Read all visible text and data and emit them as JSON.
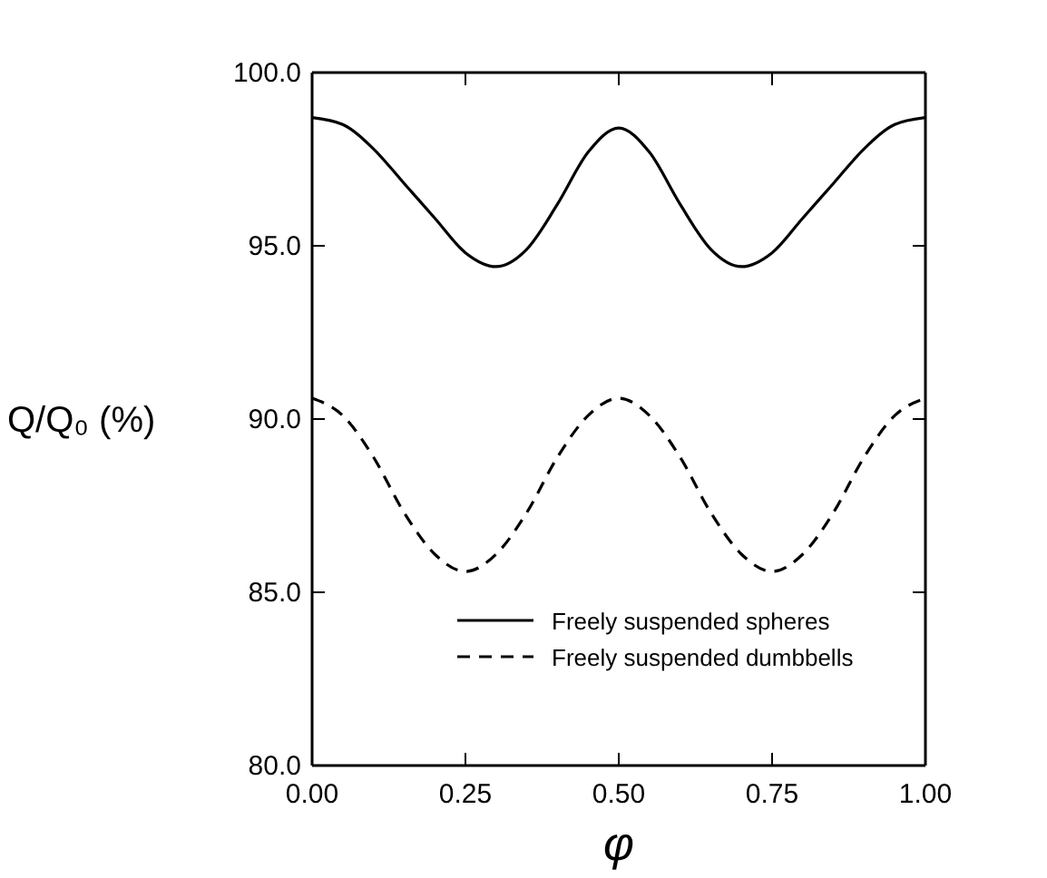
{
  "chart_data": {
    "type": "line",
    "xlabel": "φ",
    "ylabel": "Q/Q₀ (%)",
    "x": [
      0,
      0.05,
      0.1,
      0.15,
      0.2,
      0.25,
      0.3,
      0.35,
      0.4,
      0.45,
      0.5,
      0.55,
      0.6,
      0.65,
      0.7,
      0.75,
      0.8,
      0.85,
      0.9,
      0.95,
      1
    ],
    "series": [
      {
        "name": "Freely suspended spheres",
        "color": "#000000",
        "line_style": "solid",
        "values": [
          98.7,
          98.5,
          97.8,
          96.8,
          95.8,
          94.8,
          94.4,
          94.9,
          96.2,
          97.7,
          98.4,
          97.7,
          96.2,
          94.9,
          94.4,
          94.8,
          95.8,
          96.8,
          97.8,
          98.5,
          98.7
        ]
      },
      {
        "name": "Freely suspended dumbbells",
        "color": "#000000",
        "line_style": "dashed",
        "values": [
          90.6,
          90.1,
          88.9,
          87.3,
          86.1,
          85.6,
          86.1,
          87.3,
          88.9,
          90.1,
          90.6,
          90.1,
          88.9,
          87.3,
          86.1,
          85.6,
          86.1,
          87.3,
          88.9,
          90.1,
          90.6
        ]
      }
    ],
    "xlim": [
      0,
      1
    ],
    "xticks": [
      {
        "value": 0,
        "label": "0.00"
      },
      {
        "value": 0.25,
        "label": "0.25"
      },
      {
        "value": 0.5,
        "label": "0.50"
      },
      {
        "value": 0.75,
        "label": "0.75"
      },
      {
        "value": 1,
        "label": "1.00"
      }
    ],
    "ylim": [
      80,
      100
    ],
    "yticks": [
      {
        "value": 80,
        "label": "80.0"
      },
      {
        "value": 85,
        "label": "85.0"
      },
      {
        "value": 90,
        "label": "90.0"
      },
      {
        "value": 95,
        "label": "95.0"
      },
      {
        "value": 100,
        "label": "100.0"
      }
    ],
    "grid": false,
    "legend": "bottom right",
    "marker": "none"
  }
}
